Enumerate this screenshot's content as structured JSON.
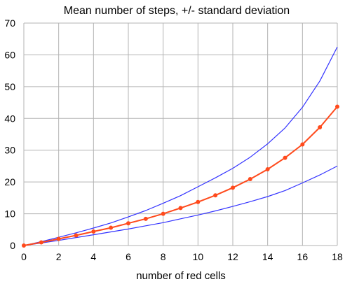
{
  "chart_data": {
    "type": "line",
    "title": "Mean number of steps, +/- standard deviation",
    "xlabel": "number of red cells",
    "ylabel": "",
    "xlim": [
      0,
      18
    ],
    "ylim": [
      0,
      70
    ],
    "x_ticks": [
      0,
      2,
      4,
      6,
      8,
      10,
      12,
      14,
      16,
      18
    ],
    "y_ticks": [
      0,
      10,
      20,
      30,
      40,
      50,
      60,
      70
    ],
    "grid": true,
    "legend": "none",
    "x": [
      0,
      1,
      2,
      3,
      4,
      5,
      6,
      7,
      8,
      9,
      10,
      11,
      12,
      13,
      14,
      15,
      16,
      17,
      18
    ],
    "series": [
      {
        "color": "#ff4a1c",
        "markers": true,
        "values": [
          0,
          1,
          2.1,
          3.2,
          4.4,
          5.6,
          7.0,
          8.4,
          10.0,
          11.8,
          13.7,
          15.8,
          18.2,
          20.9,
          24.0,
          27.6,
          31.8,
          37.2,
          43.7
        ]
      },
      {
        "color": "#3333ff",
        "markers": false,
        "values": [
          0,
          1.2,
          2.6,
          4.0,
          5.5,
          7.1,
          9.0,
          11.0,
          13.3,
          15.7,
          18.5,
          21.3,
          24.3,
          27.8,
          32.0,
          37.0,
          43.5,
          51.8,
          62.5
        ]
      },
      {
        "color": "#3333ff",
        "markers": false,
        "values": [
          0,
          0.8,
          1.6,
          2.5,
          3.4,
          4.3,
          5.2,
          6.2,
          7.2,
          8.4,
          9.6,
          10.9,
          12.3,
          13.8,
          15.4,
          17.3,
          19.7,
          22.2,
          25.0
        ]
      }
    ]
  }
}
